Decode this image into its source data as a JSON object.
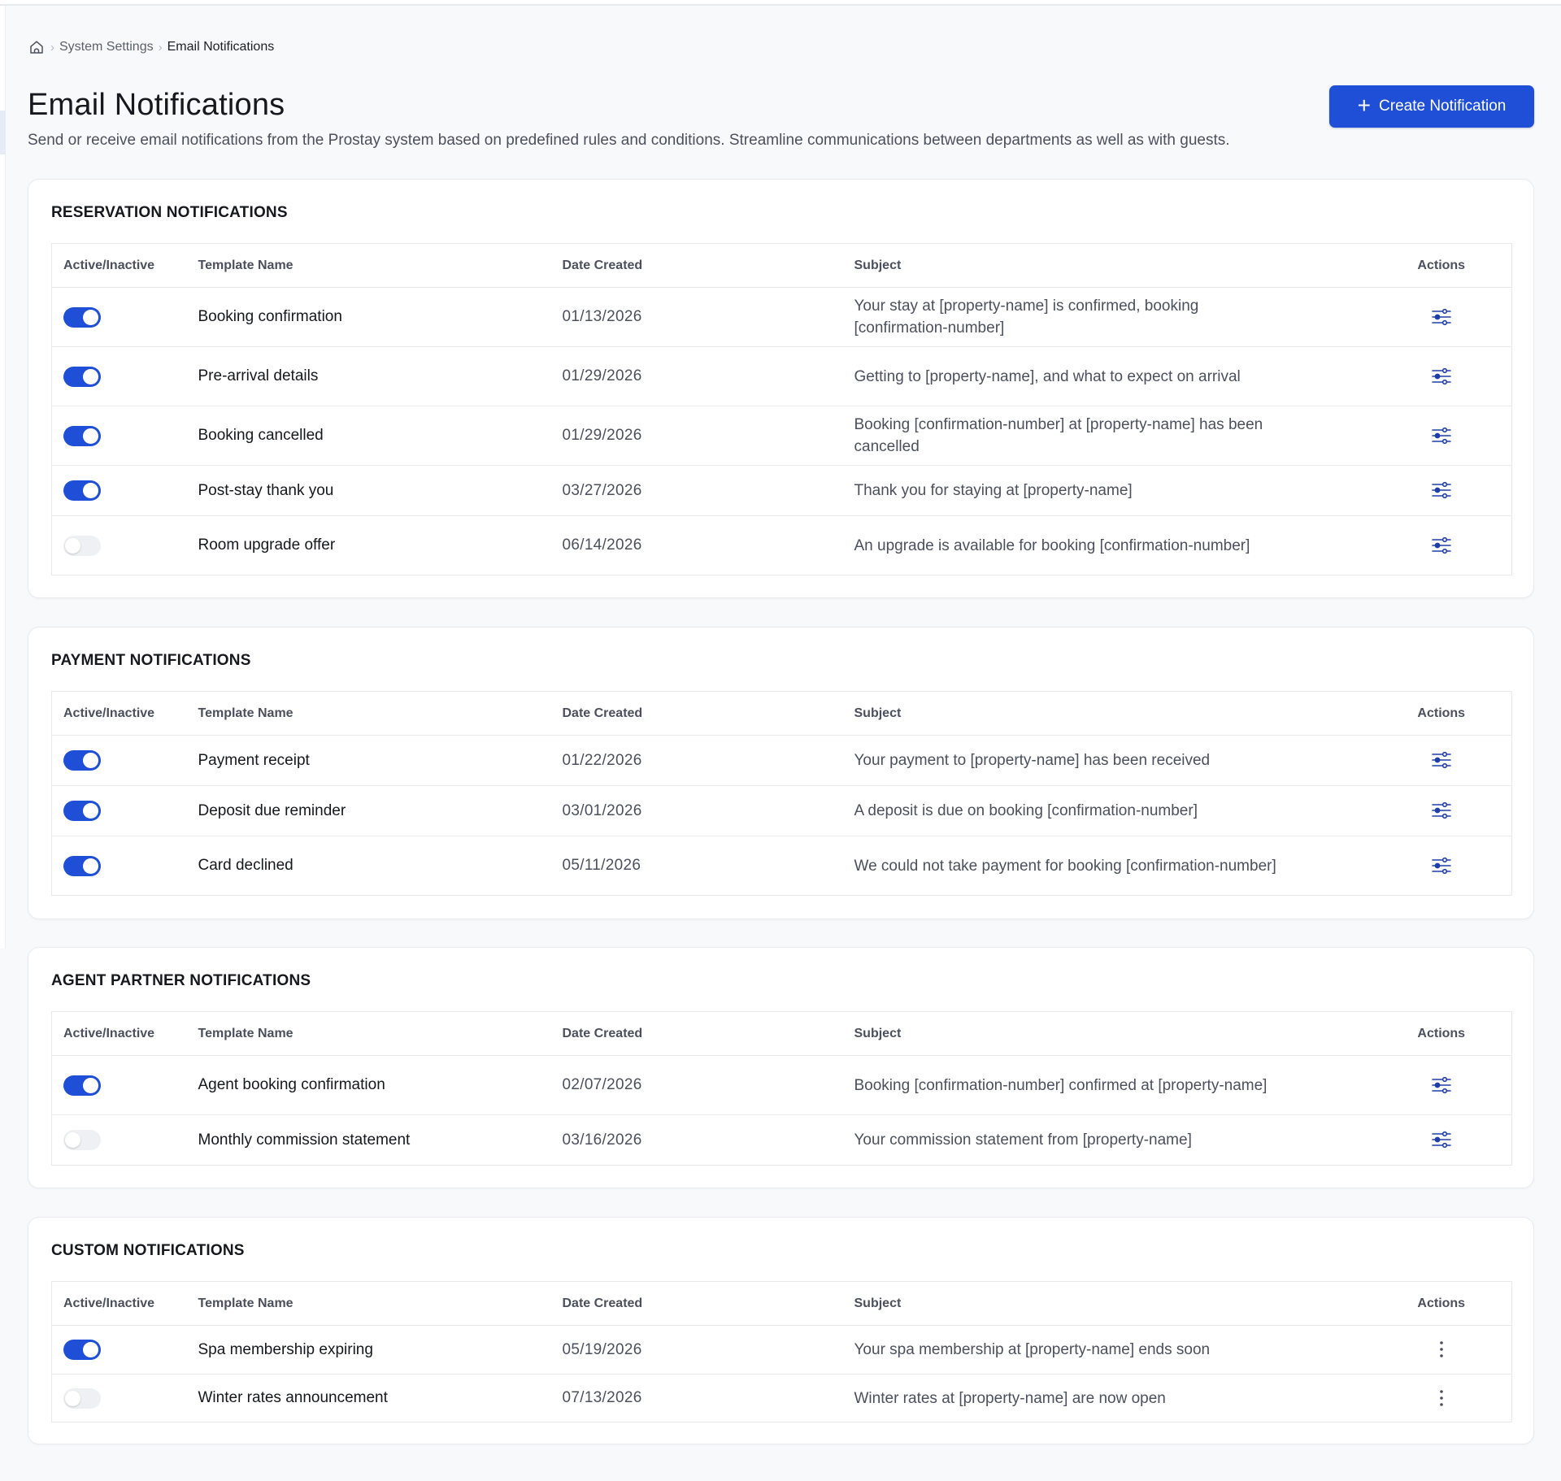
{
  "breadcrumb": {
    "items": [
      "System Settings",
      "Email Notifications"
    ]
  },
  "page": {
    "title": "Email Notifications",
    "description": "Send or receive email notifications from the Prostay system based on predefined rules and conditions. Streamline communications between departments as well as with guests."
  },
  "create_button": {
    "label": "Create Notification"
  },
  "columns": [
    "Active/Inactive",
    "Template Name",
    "Date Created",
    "Subject",
    "Actions"
  ],
  "sections": [
    {
      "title": "RESERVATION NOTIFICATIONS",
      "action_icon": "sliders-icon",
      "rows": [
        {
          "active": true,
          "name": "Booking confirmation",
          "date": "01/13/2026",
          "subject": "Your stay at [property-name] is confirmed, booking [confirmation-number]"
        },
        {
          "active": true,
          "name": "Pre-arrival details",
          "date": "01/29/2026",
          "subject": "Getting to [property-name], and what to expect on arrival"
        },
        {
          "active": true,
          "name": "Booking cancelled",
          "date": "01/29/2026",
          "subject": "Booking [confirmation-number] at [property-name] has been cancelled"
        },
        {
          "active": true,
          "name": "Post-stay thank you",
          "date": "03/27/2026",
          "subject": "Thank you for staying at [property-name]"
        },
        {
          "active": false,
          "name": "Room upgrade offer",
          "date": "06/14/2026",
          "subject": "An upgrade is available for booking [confirmation-number]"
        }
      ]
    },
    {
      "title": "PAYMENT NOTIFICATIONS",
      "action_icon": "sliders-icon",
      "rows": [
        {
          "active": true,
          "name": "Payment receipt",
          "date": "01/22/2026",
          "subject": "Your payment to [property-name] has been received"
        },
        {
          "active": true,
          "name": "Deposit due reminder",
          "date": "03/01/2026",
          "subject": "A deposit is due on booking [confirmation-number]"
        },
        {
          "active": true,
          "name": "Card declined",
          "date": "05/11/2026",
          "subject": "We could not take payment for booking [confirmation-number]"
        }
      ]
    },
    {
      "title": "AGENT PARTNER NOTIFICATIONS",
      "action_icon": "sliders-icon",
      "rows": [
        {
          "active": true,
          "name": "Agent booking confirmation",
          "date": "02/07/2026",
          "subject": "Booking [confirmation-number] confirmed at [property-name]"
        },
        {
          "active": false,
          "name": "Monthly commission statement",
          "date": "03/16/2026",
          "subject": "Your commission statement from [property-name]"
        }
      ]
    },
    {
      "title": "CUSTOM NOTIFICATIONS",
      "action_icon": "more-vertical-icon",
      "rows": [
        {
          "active": true,
          "name": "Spa membership expiring",
          "date": "05/19/2026",
          "subject": "Your spa membership at [property-name] ends soon"
        },
        {
          "active": false,
          "name": "Winter rates announcement",
          "date": "07/13/2026",
          "subject": "Winter rates at [property-name] are now open"
        }
      ]
    }
  ],
  "colors": {
    "accent": "#1f4fd6",
    "toggle_off": "#eef0f3",
    "background": "#f8f9fb"
  }
}
